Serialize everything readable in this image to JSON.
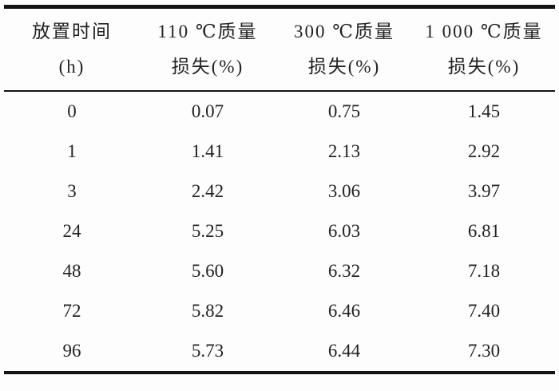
{
  "table": {
    "columns": [
      {
        "line1": "放置时间",
        "line2": "(h)"
      },
      {
        "line1": "110 ℃质量",
        "line2": "损失(%)"
      },
      {
        "line1": "300 ℃质量",
        "line2": "损失(%)"
      },
      {
        "line1": "1 000 ℃质量",
        "line2": "损失(%)"
      }
    ],
    "rows": [
      {
        "time": "0",
        "loss_110": "0.07",
        "loss_300": "0.75",
        "loss_1000": "1.45"
      },
      {
        "time": "1",
        "loss_110": "1.41",
        "loss_300": "2.13",
        "loss_1000": "2.92"
      },
      {
        "time": "3",
        "loss_110": "2.42",
        "loss_300": "3.06",
        "loss_1000": "3.97"
      },
      {
        "time": "24",
        "loss_110": "5.25",
        "loss_300": "6.03",
        "loss_1000": "6.81"
      },
      {
        "time": "48",
        "loss_110": "5.60",
        "loss_300": "6.32",
        "loss_1000": "7.18"
      },
      {
        "time": "72",
        "loss_110": "5.82",
        "loss_300": "6.46",
        "loss_1000": "7.40"
      },
      {
        "time": "96",
        "loss_110": "5.73",
        "loss_300": "6.44",
        "loss_1000": "7.30"
      }
    ]
  },
  "chart_data": {
    "type": "table",
    "columns": [
      "放置时间 (h)",
      "110 ℃质量损失(%)",
      "300 ℃质量损失(%)",
      "1 000 ℃质量损失(%)"
    ],
    "x": [
      0,
      1,
      3,
      24,
      48,
      72,
      96
    ],
    "series": [
      {
        "name": "110 ℃质量损失(%)",
        "values": [
          0.07,
          1.41,
          2.42,
          5.25,
          5.6,
          5.82,
          5.73
        ]
      },
      {
        "name": "300 ℃质量损失(%)",
        "values": [
          0.75,
          2.13,
          3.06,
          6.03,
          6.32,
          6.46,
          6.44
        ]
      },
      {
        "name": "1 000 ℃质量损失(%)",
        "values": [
          1.45,
          2.92,
          3.97,
          6.81,
          7.18,
          7.4,
          7.3
        ]
      }
    ]
  },
  "colors": {
    "background": "#fdfdfd",
    "text": "#222222",
    "rule": "#141414"
  }
}
